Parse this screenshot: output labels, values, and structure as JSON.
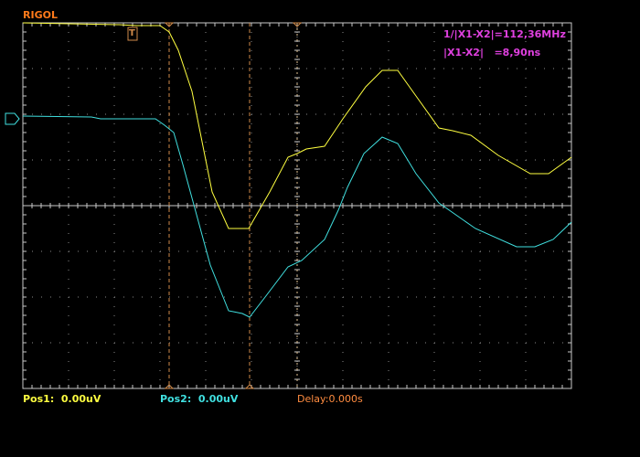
{
  "header": {
    "brand": "RIGOL"
  },
  "markers": {
    "trigger": "T"
  },
  "measurements": [
    "1/|X1-X2|=112,36MHz",
    "|X1-X2|   =8,90ns"
  ],
  "footer": {
    "pos1": "Pos1:  0.00uV",
    "pos2": "Pos2:  0.00uV",
    "delay": "Delay:0.000s"
  }
}
